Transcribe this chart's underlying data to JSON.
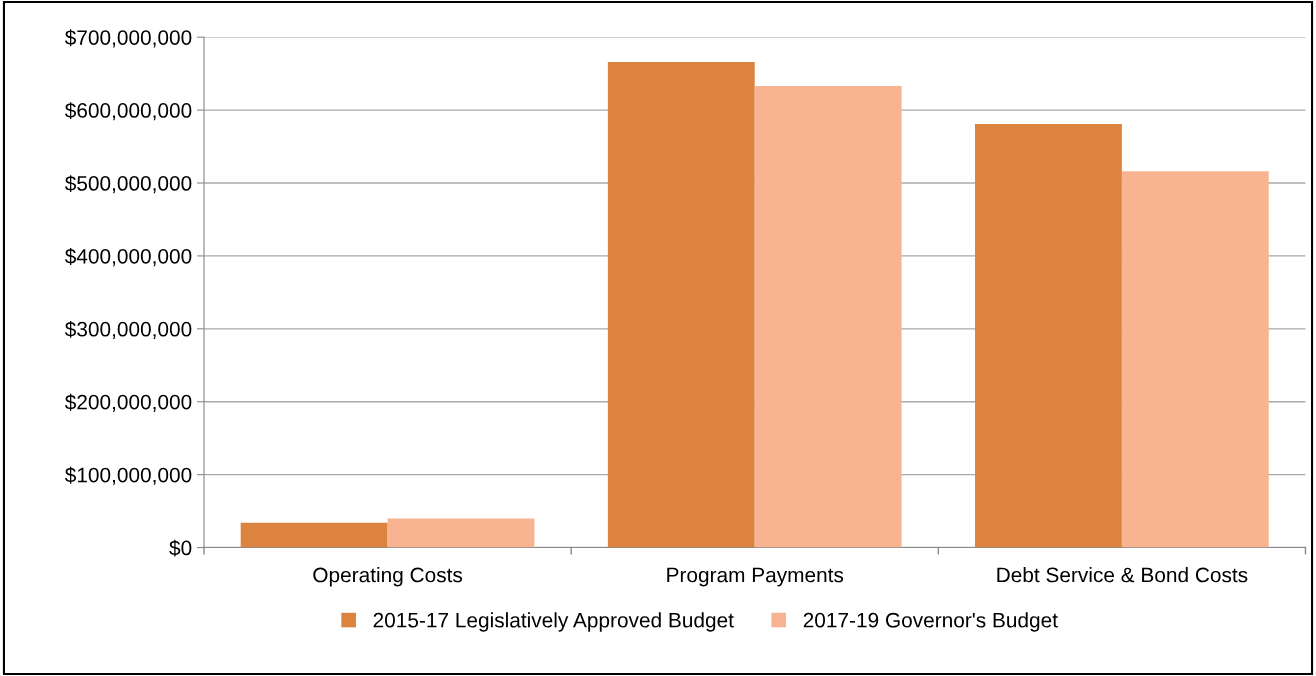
{
  "chart_data": {
    "type": "bar",
    "categories": [
      "Operating Costs",
      "Program Payments",
      "Debt Service & Bond Costs"
    ],
    "series": [
      {
        "name": "2015-17 Legislatively Approved Budget",
        "color": "#dc833f",
        "values": [
          34000000,
          666000000,
          581000000
        ]
      },
      {
        "name": "2017-19 Governor's Budget",
        "color": "#f8b390",
        "values": [
          40000000,
          633000000,
          516000000
        ]
      }
    ],
    "ylim": [
      0,
      700000000
    ],
    "yticks": [
      {
        "value": 0,
        "label": "$0"
      },
      {
        "value": 100000000,
        "label": "$100,000,000"
      },
      {
        "value": 200000000,
        "label": "$200,000,000"
      },
      {
        "value": 300000000,
        "label": "$300,000,000"
      },
      {
        "value": 400000000,
        "label": "$400,000,000"
      },
      {
        "value": 500000000,
        "label": "$500,000,000"
      },
      {
        "value": 600000000,
        "label": "$600,000,000"
      },
      {
        "value": 700000000,
        "label": "$700,000,000"
      }
    ],
    "grid": "y",
    "legend": "bottom"
  }
}
